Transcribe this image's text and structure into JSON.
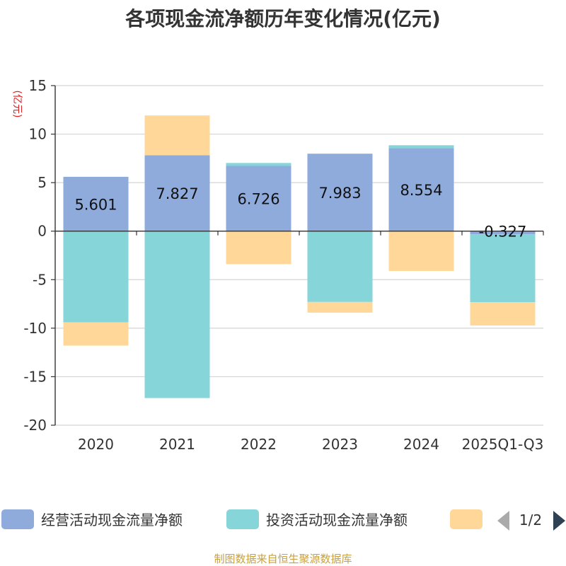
{
  "chart_data": {
    "type": "bar",
    "stacked": true,
    "title": "各项现金流净额历年变化情况(亿元)",
    "ylabel": "(亿元)",
    "xlabel": "",
    "ylim": [
      -20,
      15
    ],
    "yticks": [
      15,
      10,
      5,
      0,
      -5,
      -10,
      -15,
      -20
    ],
    "categories": [
      "2020",
      "2021",
      "2022",
      "2023",
      "2024",
      "2025Q1-Q3"
    ],
    "series": [
      {
        "name": "经营活动现金流量净额",
        "color": "#8eabdc",
        "values": [
          5.601,
          7.827,
          6.726,
          7.983,
          8.554,
          -0.327
        ]
      },
      {
        "name": "投资活动现金流量净额",
        "color": "#86d5d8",
        "values": [
          -9.4,
          -17.2,
          0.3,
          -7.3,
          0.3,
          -7.0
        ]
      },
      {
        "name": "",
        "color": "#ffd899",
        "values": [
          -2.4,
          4.1,
          -3.4,
          -1.1,
          -4.1,
          -2.4
        ]
      }
    ],
    "data_labels": [
      "5.601",
      "7.827",
      "6.726",
      "7.983",
      "8.554",
      "-0.327"
    ],
    "grid": true,
    "legend_position": "bottom"
  },
  "legend": {
    "page": "1/2"
  },
  "source": "制图数据来自恒生聚源数据库"
}
